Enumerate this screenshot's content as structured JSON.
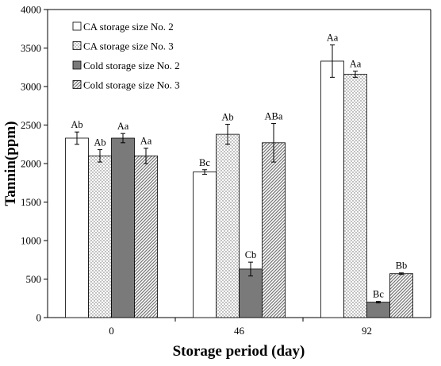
{
  "chart_data": {
    "type": "bar",
    "title": "",
    "xlabel": "Storage period (day)",
    "ylabel": "Tannin(ppm)",
    "ylim": [
      0,
      4000
    ],
    "yticks": [
      0,
      500,
      1000,
      1500,
      2000,
      2500,
      3000,
      3500,
      4000
    ],
    "categories": [
      "0",
      "46",
      "92"
    ],
    "grid": false,
    "legend_position": "top-left",
    "series": [
      {
        "name": "CA storage size No. 2",
        "pattern": "white",
        "color": "#ffffff",
        "values": [
          2330,
          1890,
          3330
        ],
        "errors": [
          80,
          30,
          210
        ],
        "annotations": [
          "Ab",
          "Bc",
          "Aa"
        ]
      },
      {
        "name": "CA storage size No. 3",
        "pattern": "dots",
        "color": "#e8e8e8",
        "values": [
          2100,
          2380,
          3160
        ],
        "errors": [
          80,
          130,
          40
        ],
        "annotations": [
          "Ab",
          "Ab",
          "Aa"
        ]
      },
      {
        "name": "Cold storage size No. 2",
        "pattern": "solid-gray",
        "color": "#7a7a7a",
        "values": [
          2330,
          630,
          200
        ],
        "errors": [
          60,
          90,
          10
        ],
        "annotations": [
          "Aa",
          "Cb",
          "Bc"
        ]
      },
      {
        "name": "Cold storage size No. 3",
        "pattern": "diagonal",
        "color": "#b8b8b8",
        "values": [
          2100,
          2270,
          570
        ],
        "errors": [
          100,
          250,
          10
        ],
        "annotations": [
          "Aa",
          "ABa",
          "Bb"
        ]
      }
    ]
  }
}
